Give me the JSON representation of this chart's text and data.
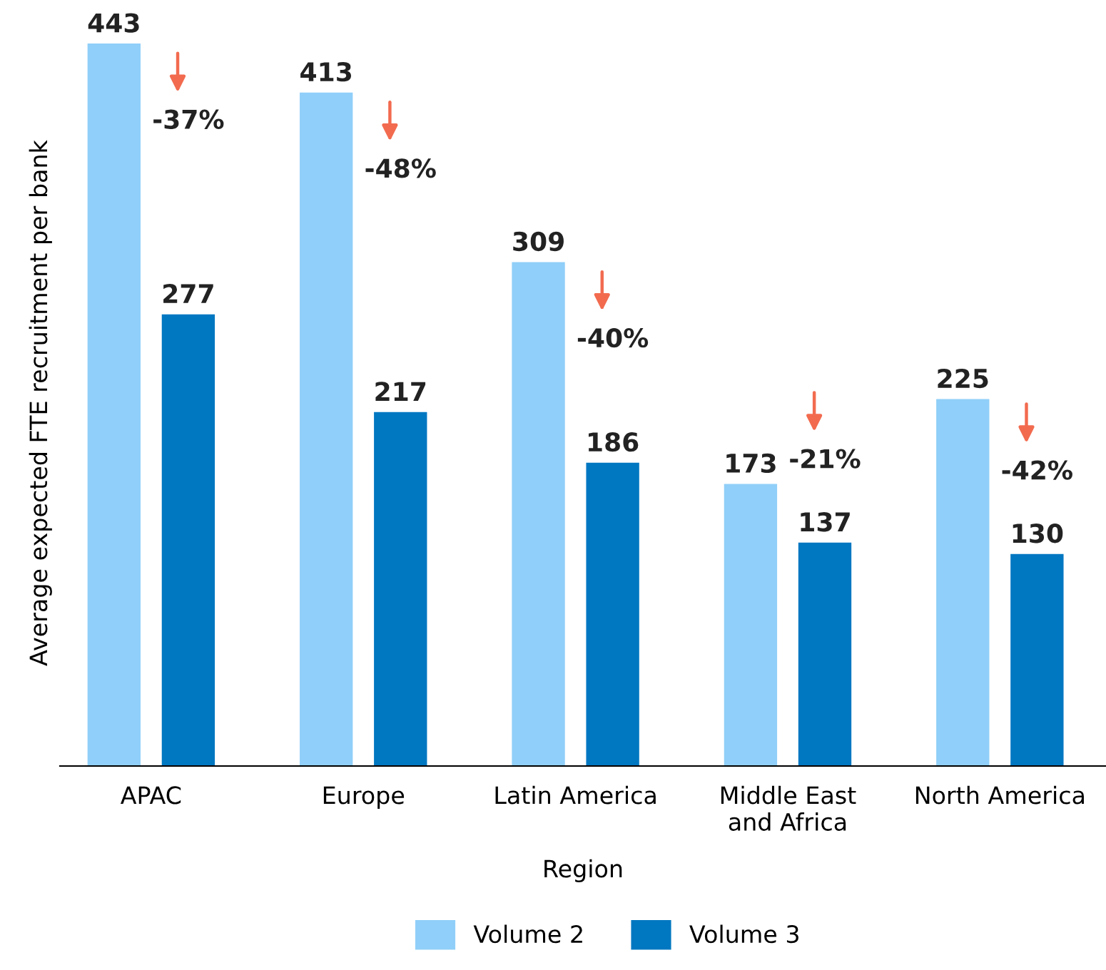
{
  "chart_data": {
    "type": "bar",
    "categories": [
      "APAC",
      "Europe",
      "Latin America",
      "Middle East\nand Africa",
      "North America"
    ],
    "series": [
      {
        "name": "Volume 2",
        "color": "#90cff9",
        "values": [
          443,
          413,
          309,
          173,
          225
        ]
      },
      {
        "name": "Volume 3",
        "color": "#0077c1",
        "values": [
          277,
          217,
          186,
          137,
          130
        ]
      }
    ],
    "data_labels": true,
    "xlabel": "Region",
    "ylabel": "Average expected FTE recruitment per bank",
    "annotations": [
      "-37%",
      "-48%",
      "-40%",
      "-21%",
      "-42%"
    ],
    "legend": "bottom",
    "grid": false
  }
}
